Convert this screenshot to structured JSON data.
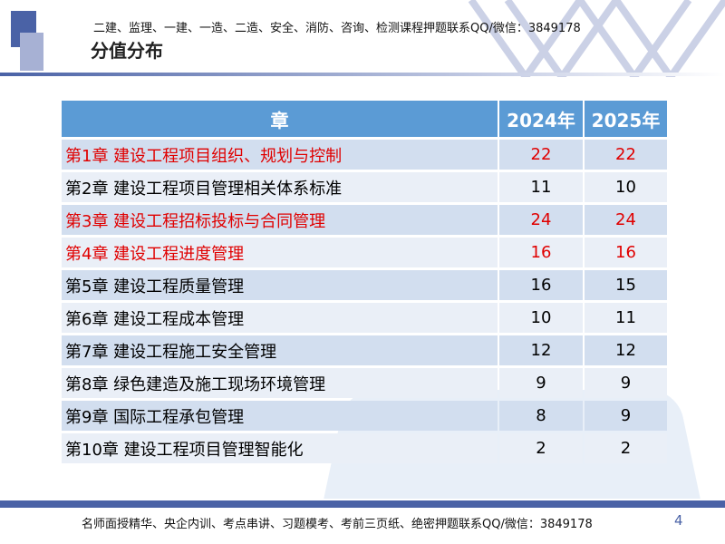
{
  "header": {
    "ad": "二建、监理、一建、一造、二造、安全、消防、咨询、检测课程押题联系QQ/微信：3849178",
    "title": "分值分布"
  },
  "table": {
    "headers": [
      "章",
      "2024年",
      "2025年"
    ],
    "rows": [
      {
        "chapter": "第1章  建设工程项目组织、规划与控制",
        "y2024": "22",
        "y2025": "22",
        "highlight": true
      },
      {
        "chapter": "第2章  建设工程项目管理相关体系标准",
        "y2024": "11",
        "y2025": "10",
        "highlight": false
      },
      {
        "chapter": "第3章  建设工程招标投标与合同管理",
        "y2024": "24",
        "y2025": "24",
        "highlight": true
      },
      {
        "chapter": "第4章  建设工程进度管理",
        "y2024": "16",
        "y2025": "16",
        "highlight": true
      },
      {
        "chapter": "第5章  建设工程质量管理",
        "y2024": "16",
        "y2025": "15",
        "highlight": false
      },
      {
        "chapter": "第6章  建设工程成本管理",
        "y2024": "10",
        "y2025": "11",
        "highlight": false
      },
      {
        "chapter": "第7章  建设工程施工安全管理",
        "y2024": "12",
        "y2025": "12",
        "highlight": false
      },
      {
        "chapter": "第8章  绿色建造及施工现场环境管理",
        "y2024": "9",
        "y2025": "9",
        "highlight": false
      },
      {
        "chapter": "第9章  国际工程承包管理",
        "y2024": "8",
        "y2025": "9",
        "highlight": false
      },
      {
        "chapter": "第10章 建设工程项目管理智能化",
        "y2024": "2",
        "y2025": "2",
        "highlight": false
      }
    ]
  },
  "footer": {
    "ad": "名师面授精华、央企内训、考点串讲、习题模考、考前三页纸、绝密押题联系QQ/微信：3849178",
    "page": "4"
  },
  "colors": {
    "header_bg": "#5b9bd5",
    "highlight_text": "#e00000",
    "accent": "#4a62a6"
  }
}
